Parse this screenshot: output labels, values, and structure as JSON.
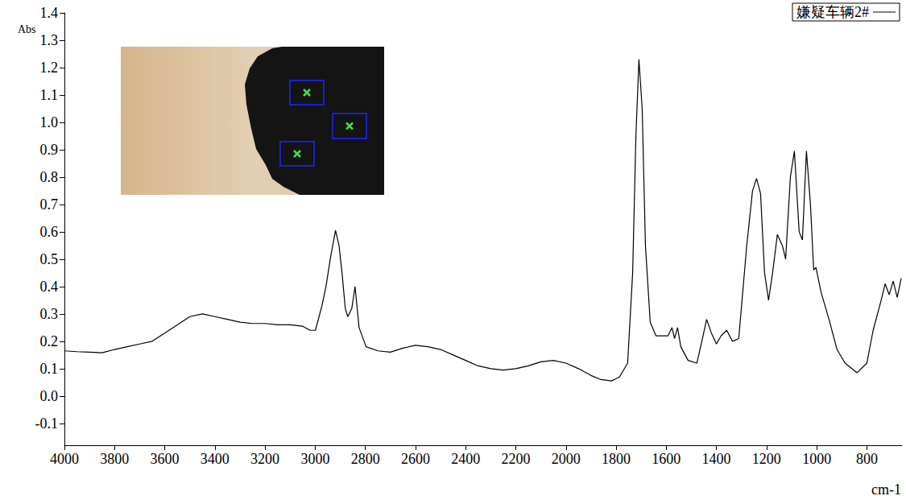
{
  "chart_data": {
    "type": "line",
    "y_label": "Abs",
    "x_label": "cm-1",
    "xlim": [
      4000,
      660
    ],
    "ylim": [
      -0.18,
      1.4
    ],
    "xticks": [
      4000,
      3800,
      3600,
      3400,
      3200,
      3000,
      2800,
      2600,
      2400,
      2200,
      2000,
      1800,
      1600,
      1400,
      1200,
      1000,
      800
    ],
    "yticks": [
      -0.1,
      {
        "value": 0,
        "label": "0.0"
      },
      0.1,
      0.2,
      0.3,
      0.4,
      0.5,
      0.6,
      0.7,
      0.8,
      0.9,
      {
        "value": 1,
        "label": "1.0"
      },
      1.1,
      1.2,
      1.3,
      1.4
    ],
    "grid": false,
    "legend": "top-right",
    "x": [
      4000,
      3950,
      3900,
      3850,
      3800,
      3750,
      3700,
      3650,
      3600,
      3550,
      3500,
      3450,
      3400,
      3350,
      3300,
      3250,
      3200,
      3150,
      3100,
      3050,
      3020,
      2999,
      2973,
      2957,
      2940,
      2919,
      2905,
      2893,
      2880,
      2870,
      2854,
      2841,
      2825,
      2797,
      2750,
      2700,
      2650,
      2600,
      2550,
      2500,
      2450,
      2400,
      2350,
      2300,
      2250,
      2200,
      2150,
      2100,
      2050,
      2000,
      1950,
      1900,
      1860,
      1818,
      1786,
      1754,
      1734,
      1721,
      1709,
      1696,
      1683,
      1664,
      1641,
      1593,
      1577,
      1567,
      1555,
      1542,
      1513,
      1478,
      1458,
      1439,
      1420,
      1400,
      1381,
      1359,
      1336,
      1311,
      1279,
      1256,
      1240,
      1224,
      1208,
      1192,
      1176,
      1157,
      1137,
      1124,
      1105,
      1089,
      1070,
      1057,
      1041,
      1025,
      1012,
      1003,
      983,
      951,
      919,
      887,
      839,
      800,
      775,
      743,
      727,
      711,
      695,
      679,
      663
    ],
    "series": [
      {
        "name": "嫌疑车辆2#",
        "color": "#000000",
        "values": [
          0.165,
          0.162,
          0.16,
          0.158,
          0.17,
          0.18,
          0.19,
          0.2,
          0.23,
          0.26,
          0.29,
          0.3,
          0.29,
          0.28,
          0.27,
          0.265,
          0.265,
          0.26,
          0.26,
          0.255,
          0.24,
          0.24,
          0.33,
          0.4,
          0.5,
          0.605,
          0.55,
          0.45,
          0.32,
          0.29,
          0.32,
          0.4,
          0.25,
          0.18,
          0.165,
          0.16,
          0.175,
          0.185,
          0.18,
          0.17,
          0.15,
          0.13,
          0.11,
          0.1,
          0.095,
          0.1,
          0.11,
          0.125,
          0.13,
          0.12,
          0.1,
          0.075,
          0.06,
          0.055,
          0.07,
          0.12,
          0.45,
          0.95,
          1.23,
          1.05,
          0.55,
          0.27,
          0.22,
          0.22,
          0.25,
          0.21,
          0.25,
          0.18,
          0.13,
          0.12,
          0.2,
          0.28,
          0.23,
          0.19,
          0.22,
          0.24,
          0.2,
          0.21,
          0.55,
          0.75,
          0.795,
          0.74,
          0.45,
          0.35,
          0.45,
          0.59,
          0.55,
          0.5,
          0.8,
          0.895,
          0.6,
          0.57,
          0.895,
          0.7,
          0.46,
          0.47,
          0.38,
          0.28,
          0.17,
          0.12,
          0.085,
          0.12,
          0.24,
          0.35,
          0.41,
          0.37,
          0.42,
          0.36,
          0.43
        ]
      }
    ]
  }
}
